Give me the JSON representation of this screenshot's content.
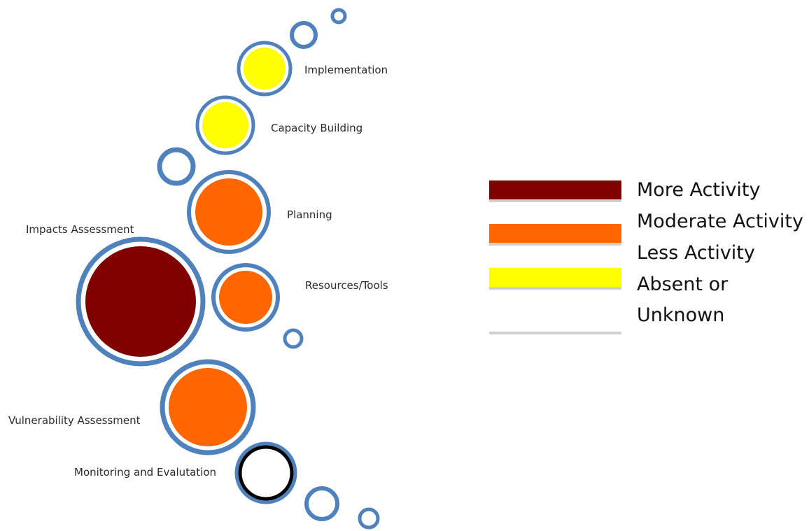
{
  "stages": [
    {
      "id": "implementation",
      "label": "Implementation",
      "level": "less"
    },
    {
      "id": "capacity-building",
      "label": "Capacity Building",
      "level": "less"
    },
    {
      "id": "planning",
      "label": "Planning",
      "level": "moderate"
    },
    {
      "id": "impacts-assessment",
      "label": "Impacts Assessment",
      "level": "more"
    },
    {
      "id": "resources-tools",
      "label": "Resources/Tools",
      "level": "moderate"
    },
    {
      "id": "vulnerability-assessment",
      "label": "Vulnerability Assessment",
      "level": "moderate"
    },
    {
      "id": "monitoring-evaluation",
      "label": "Monitoring and Evalutation",
      "level": "absent"
    }
  ],
  "legend": {
    "items": [
      {
        "label": "More Activity",
        "color": "#800000"
      },
      {
        "label": "Moderate Activity",
        "color": "#ff6600"
      },
      {
        "label": "Less Activity",
        "color": "#ffff00"
      },
      {
        "label": "Absent or",
        "color": "#ffffff"
      },
      {
        "label": "Unknown",
        "color": ""
      }
    ]
  },
  "colors": {
    "more": "#800000",
    "moderate": "#ff6600",
    "less": "#ffff00",
    "absent": "#ffffff",
    "ring": "#4f81bd",
    "ring_dark": "#000000"
  }
}
